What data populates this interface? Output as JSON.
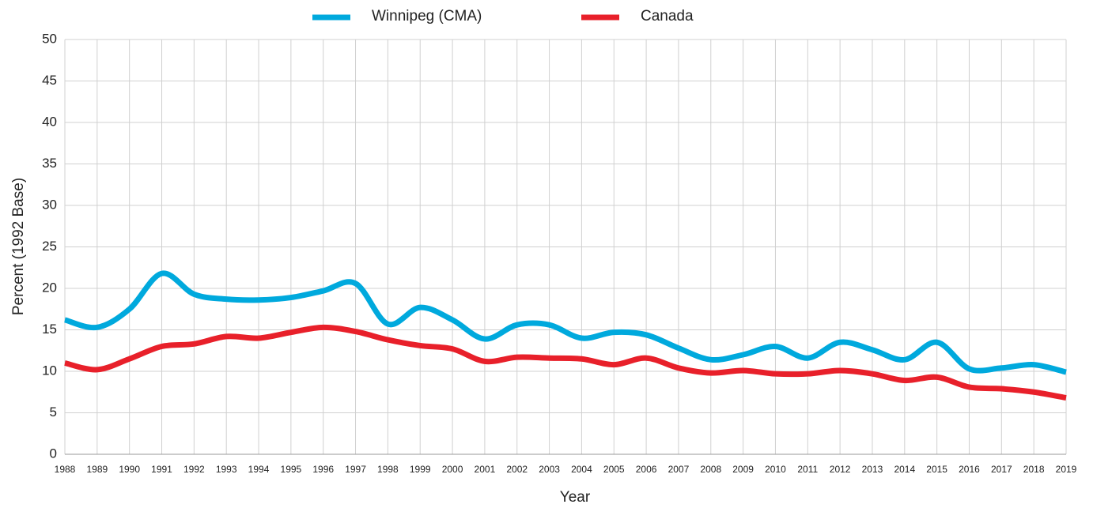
{
  "chart_data": {
    "type": "line",
    "x_label": "Year",
    "y_label": "Percent (1992 Base)",
    "x": [
      1988,
      1989,
      1990,
      1991,
      1992,
      1993,
      1994,
      1995,
      1996,
      1997,
      1998,
      1999,
      2000,
      2001,
      2002,
      2003,
      2004,
      2005,
      2006,
      2007,
      2008,
      2009,
      2010,
      2011,
      2012,
      2013,
      2014,
      2015,
      2016,
      2017,
      2018,
      2019
    ],
    "series": [
      {
        "name": "Winnipeg (CMA)",
        "color": "#00a9dd",
        "values": [
          16.2,
          15.3,
          17.5,
          21.8,
          19.3,
          18.7,
          18.6,
          18.9,
          19.7,
          20.6,
          15.7,
          17.7,
          16.2,
          13.9,
          15.6,
          15.6,
          14.0,
          14.7,
          14.4,
          12.8,
          11.4,
          12.0,
          13.0,
          11.6,
          13.5,
          12.6,
          11.4,
          13.5,
          10.3,
          10.4,
          10.8,
          9.9
        ]
      },
      {
        "name": "Canada",
        "color": "#e8202a",
        "values": [
          11.0,
          10.2,
          11.5,
          13.0,
          13.3,
          14.2,
          14.0,
          14.7,
          15.3,
          14.8,
          13.8,
          13.1,
          12.7,
          11.2,
          11.7,
          11.6,
          11.5,
          10.8,
          11.6,
          10.4,
          9.8,
          10.1,
          9.7,
          9.7,
          10.1,
          9.7,
          8.9,
          9.3,
          8.1,
          7.9,
          7.5,
          6.8
        ]
      }
    ],
    "xlim": [
      1988,
      2019
    ],
    "xticks": [
      1988,
      1989,
      1990,
      1991,
      1992,
      1993,
      1994,
      1995,
      1996,
      1997,
      1998,
      1999,
      2000,
      2001,
      2002,
      2003,
      2004,
      2005,
      2006,
      2007,
      2008,
      2009,
      2010,
      2011,
      2012,
      2013,
      2014,
      2015,
      2016,
      2017,
      2018,
      2019
    ],
    "ylim": [
      0,
      50
    ],
    "yticks": [
      0,
      5,
      10,
      15,
      20,
      25,
      30,
      35,
      40,
      45,
      50
    ],
    "grid": true,
    "legend": "top"
  }
}
